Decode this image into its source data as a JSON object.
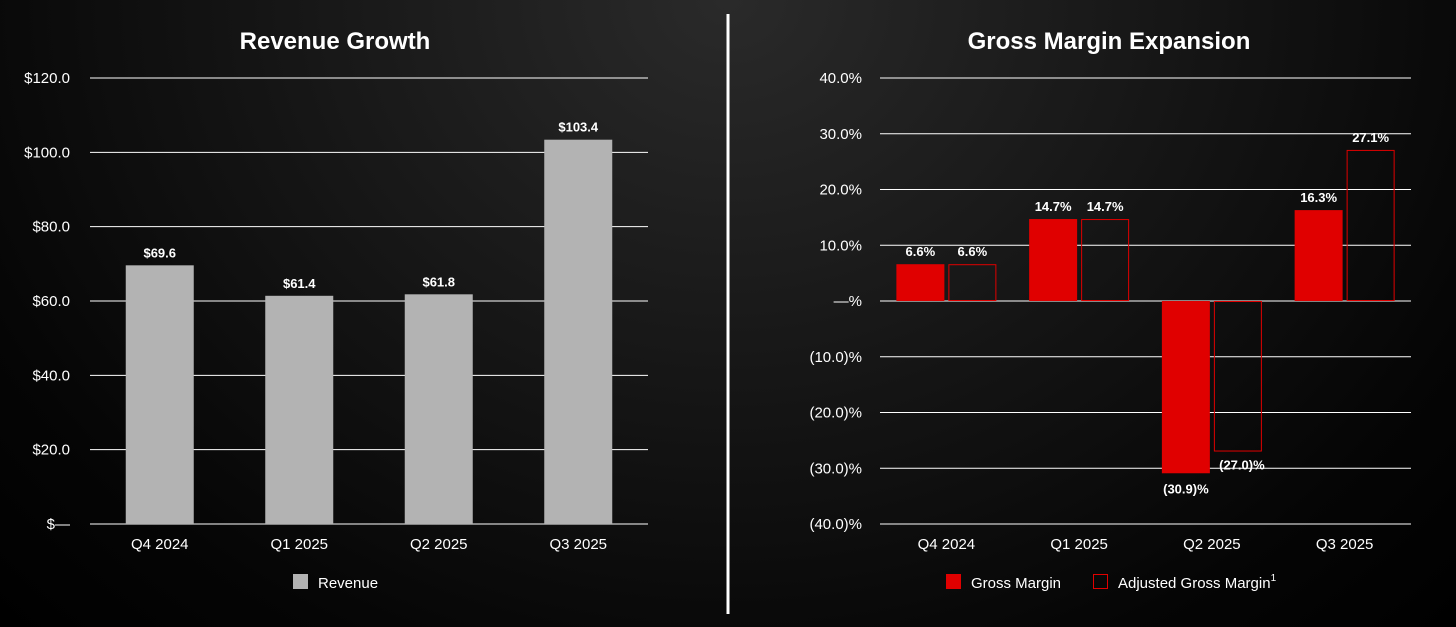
{
  "chart_data": [
    {
      "type": "bar",
      "title": "Revenue Growth",
      "categories": [
        "Q4 2024",
        "Q1 2025",
        "Q2 2025",
        "Q3 2025"
      ],
      "series": [
        {
          "name": "Revenue",
          "values": [
            69.6,
            61.4,
            61.8,
            103.4
          ],
          "labels": [
            "$69.6",
            "$61.4",
            "$61.8",
            "$103.4"
          ],
          "color": "#b3b3b3"
        }
      ],
      "ylim": [
        0,
        120
      ],
      "yticks": [
        0,
        20,
        40,
        60,
        80,
        100,
        120
      ],
      "ytick_labels": [
        "$—",
        "$20.0",
        "$40.0",
        "$60.0",
        "$80.0",
        "$100.0",
        "$120.0"
      ],
      "grid": true,
      "legend_position": "bottom"
    },
    {
      "type": "bar",
      "title": "Gross Margin Expansion",
      "categories": [
        "Q4 2024",
        "Q1 2025",
        "Q2 2025",
        "Q3 2025"
      ],
      "series": [
        {
          "name": "Gross Margin",
          "values": [
            6.6,
            14.7,
            -30.9,
            16.3
          ],
          "labels": [
            "6.6%",
            "14.7%",
            "(30.9)%",
            "16.3%"
          ],
          "color": "#e00000",
          "style": "filled"
        },
        {
          "name": "Adjusted Gross Margin",
          "name_superscript": "1",
          "values": [
            6.6,
            14.7,
            -27.0,
            27.1
          ],
          "labels": [
            "6.6%",
            "14.7%",
            "(27.0)%",
            "27.1%"
          ],
          "color": "#e00000",
          "style": "outline"
        }
      ],
      "ylim": [
        -40,
        40
      ],
      "yticks": [
        -40,
        -30,
        -20,
        -10,
        0,
        10,
        20,
        30,
        40
      ],
      "ytick_labels": [
        "(40.0)%",
        "(30.0)%",
        "(20.0)%",
        "(10.0)%",
        "—%",
        "10.0%",
        "20.0%",
        "30.0%",
        "40.0%"
      ],
      "grid": true,
      "legend_position": "bottom"
    }
  ],
  "colors": {
    "background": "#000000",
    "revenue_bar": "#b3b3b3",
    "margin_red": "#e00000",
    "text": "#ffffff",
    "gridline": "#ffffff"
  }
}
